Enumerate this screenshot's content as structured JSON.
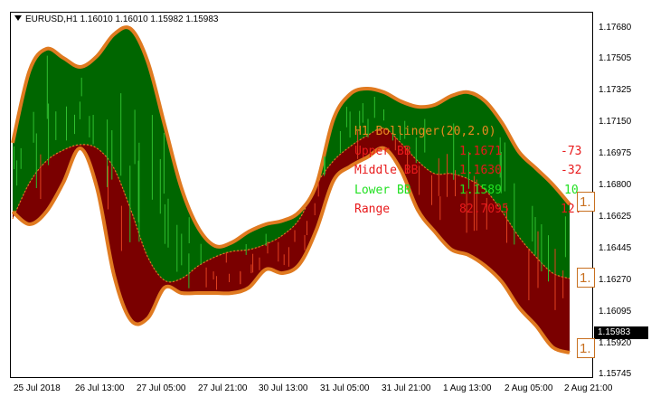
{
  "header": {
    "symbol_line": "EURUSD,H1  1.16010 1.16010 1.15982 1.15983"
  },
  "price_scale": [
    "1.17680",
    "1.17505",
    "1.17325",
    "1.17150",
    "1.16975",
    "1.16800",
    "1.16625",
    "1.16445",
    "1.16270",
    "1.16095",
    "1.15920",
    "1.15745"
  ],
  "current_price": "1.15983",
  "time_axis": [
    "25 Jul 2018",
    "26 Jul 13:00",
    "27 Jul 05:00",
    "27 Jul 21:00",
    "30 Jul 13:00",
    "31 Jul 05:00",
    "31 Jul 21:00",
    "1 Aug 13:00",
    "2 Aug 05:00",
    "2 Aug 21:00"
  ],
  "indicator": {
    "title": "H1 Bollinger(20,2.0)",
    "rows": [
      {
        "label": "Upper BB",
        "value": "1.1671",
        "change": "-73"
      },
      {
        "label": "Middle BB",
        "value": "1.1630",
        "change": "-32"
      },
      {
        "label": "Lower BB",
        "value": "1.1589",
        "change": "10"
      },
      {
        "label": "Range",
        "value": "82.7095",
        "change": "12."
      }
    ]
  },
  "right_labels": [
    "1.",
    "1.",
    "1."
  ],
  "colors": {
    "upper_band_fill": "#006600",
    "lower_band_fill": "#7a0000",
    "band_line": "#e07a20",
    "title_color": "#e88a20",
    "upper_color": "#e8191b",
    "middle_color": "#e8191b",
    "lower_color": "#22e022",
    "range_color": "#e8191b"
  },
  "chart_data": {
    "type": "area",
    "ylim": [
      1.15745,
      1.1777
    ],
    "series": [
      {
        "values": [
          1.1705,
          1.1745,
          1.1757,
          1.1752,
          1.1747,
          1.1753,
          1.1765,
          1.1768,
          1.175,
          1.1715,
          1.168,
          1.1658,
          1.1648,
          1.165,
          1.1656,
          1.166,
          1.1662,
          1.1667,
          1.1682,
          1.1718,
          1.1732,
          1.1735,
          1.1733,
          1.1728,
          1.1725,
          1.1726,
          1.1731,
          1.1733,
          1.1728,
          1.1716,
          1.17,
          1.1691,
          1.1682,
          1.1671
        ]
      },
      {
        "values": [
          1.1663,
          1.1683,
          1.1695,
          1.1701,
          1.1704,
          1.1702,
          1.1691,
          1.1668,
          1.1642,
          1.1629,
          1.163,
          1.1637,
          1.1642,
          1.1645,
          1.1646,
          1.1649,
          1.1654,
          1.1663,
          1.1682,
          1.1695,
          1.1703,
          1.1709,
          1.1713,
          1.1705,
          1.1695,
          1.1688,
          1.1688,
          1.1685,
          1.1679,
          1.1667,
          1.1653,
          1.1642,
          1.1633,
          1.163
        ]
      },
      {
        "values": [
          1.1667,
          1.166,
          1.1667,
          1.1683,
          1.1702,
          1.168,
          1.1632,
          1.1607,
          1.1608,
          1.1625,
          1.1622,
          1.1622,
          1.1622,
          1.1622,
          1.1625,
          1.1635,
          1.1633,
          1.1638,
          1.1657,
          1.1684,
          1.1692,
          1.1697,
          1.1702,
          1.169,
          1.1668,
          1.1656,
          1.1646,
          1.1643,
          1.1637,
          1.1628,
          1.1614,
          1.1604,
          1.1592,
          1.1589
        ]
      }
    ]
  }
}
